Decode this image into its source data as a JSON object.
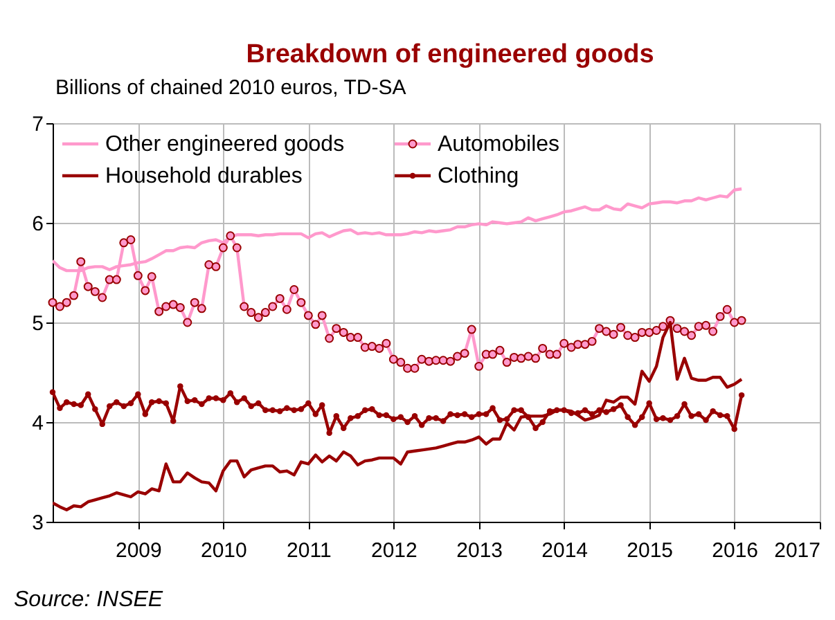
{
  "chart_data": {
    "type": "line",
    "title": "Breakdown of engineered goods",
    "ylabel": "Billions of chained 2010 euros, TD-SA",
    "annotations": [
      "Source: INSEE"
    ],
    "x": [
      "2008-01",
      "2008-02",
      "2008-03",
      "2008-04",
      "2008-05",
      "2008-06",
      "2008-07",
      "2008-08",
      "2008-09",
      "2008-10",
      "2008-11",
      "2008-12",
      "2009-01",
      "2009-02",
      "2009-03",
      "2009-04",
      "2009-05",
      "2009-06",
      "2009-07",
      "2009-08",
      "2009-09",
      "2009-10",
      "2009-11",
      "2009-12",
      "2010-01",
      "2010-02",
      "2010-03",
      "2010-04",
      "2010-05",
      "2010-06",
      "2010-07",
      "2010-08",
      "2010-09",
      "2010-10",
      "2010-11",
      "2010-12",
      "2011-01",
      "2011-02",
      "2011-03",
      "2011-04",
      "2011-05",
      "2011-06",
      "2011-07",
      "2011-08",
      "2011-09",
      "2011-10",
      "2011-11",
      "2011-12",
      "2012-01",
      "2012-02",
      "2012-03",
      "2012-04",
      "2012-05",
      "2012-06",
      "2012-07",
      "2012-08",
      "2012-09",
      "2012-10",
      "2012-11",
      "2012-12",
      "2013-01",
      "2013-02",
      "2013-03",
      "2013-04",
      "2013-05",
      "2013-06",
      "2013-07",
      "2013-08",
      "2013-09",
      "2013-10",
      "2013-11",
      "2013-12",
      "2014-01",
      "2014-02",
      "2014-03",
      "2014-04",
      "2014-05",
      "2014-06",
      "2014-07",
      "2014-08",
      "2014-09",
      "2014-10",
      "2014-11",
      "2014-12",
      "2015-01",
      "2015-02",
      "2015-03",
      "2015-04",
      "2015-05",
      "2015-06",
      "2015-07",
      "2015-08",
      "2015-09",
      "2015-10",
      "2015-11",
      "2015-12",
      "2016-01",
      "2016-02"
    ],
    "xlim": [
      "2008-01",
      "2017-01"
    ],
    "xticks": [
      "2009",
      "2010",
      "2011",
      "2012",
      "2013",
      "2014",
      "2015",
      "2016",
      "2017"
    ],
    "ylim": [
      3,
      7
    ],
    "yticks": [
      3,
      4,
      5,
      6,
      7
    ],
    "grid": true,
    "legend": "top left",
    "series": [
      {
        "name": "Other engineered goods",
        "color": "#ff99cc",
        "marker": "none",
        "values": [
          5.62,
          5.55,
          5.52,
          5.52,
          5.52,
          5.55,
          5.56,
          5.56,
          5.53,
          5.56,
          5.57,
          5.58,
          5.6,
          5.61,
          5.64,
          5.68,
          5.72,
          5.72,
          5.75,
          5.76,
          5.75,
          5.8,
          5.82,
          5.83,
          5.8,
          5.86,
          5.88,
          5.88,
          5.88,
          5.87,
          5.88,
          5.88,
          5.89,
          5.89,
          5.89,
          5.89,
          5.85,
          5.89,
          5.9,
          5.86,
          5.89,
          5.92,
          5.93,
          5.89,
          5.9,
          5.89,
          5.9,
          5.88,
          5.88,
          5.88,
          5.89,
          5.91,
          5.9,
          5.92,
          5.91,
          5.92,
          5.93,
          5.96,
          5.96,
          5.98,
          5.99,
          5.98,
          6.01,
          6.0,
          5.99,
          6.0,
          6.01,
          6.05,
          6.02,
          6.04,
          6.06,
          6.08,
          6.11,
          6.12,
          6.14,
          6.16,
          6.13,
          6.13,
          6.17,
          6.14,
          6.13,
          6.19,
          6.17,
          6.15,
          6.19,
          6.2,
          6.21,
          6.21,
          6.2,
          6.22,
          6.22,
          6.25,
          6.23,
          6.25,
          6.27,
          6.26,
          6.33,
          6.34
        ]
      },
      {
        "name": "Automobiles",
        "color": "#ff99cc",
        "marker": "circle",
        "values": [
          5.2,
          5.16,
          5.2,
          5.27,
          5.61,
          5.36,
          5.31,
          5.25,
          5.43,
          5.43,
          5.8,
          5.83,
          5.47,
          5.32,
          5.46,
          5.11,
          5.16,
          5.18,
          5.15,
          5.0,
          5.2,
          5.14,
          5.58,
          5.56,
          5.75,
          5.87,
          5.75,
          5.16,
          5.1,
          5.05,
          5.1,
          5.16,
          5.24,
          5.13,
          5.33,
          5.2,
          5.07,
          4.98,
          5.07,
          4.84,
          4.94,
          4.9,
          4.85,
          4.85,
          4.75,
          4.76,
          4.74,
          4.79,
          4.63,
          4.6,
          4.54,
          4.54,
          4.63,
          4.61,
          4.62,
          4.62,
          4.61,
          4.66,
          4.69,
          4.93,
          4.56,
          4.68,
          4.68,
          4.72,
          4.6,
          4.65,
          4.64,
          4.66,
          4.64,
          4.74,
          4.68,
          4.68,
          4.79,
          4.75,
          4.78,
          4.78,
          4.81,
          4.94,
          4.91,
          4.88,
          4.95,
          4.87,
          4.85,
          4.9,
          4.9,
          4.92,
          4.96,
          5.02,
          4.94,
          4.91,
          4.87,
          4.96,
          4.97,
          4.91,
          5.06,
          5.13,
          5.0,
          5.02
        ]
      },
      {
        "name": "Household durables",
        "color": "#990000",
        "marker": "none",
        "values": [
          3.19,
          3.15,
          3.12,
          3.16,
          3.15,
          3.2,
          3.22,
          3.24,
          3.26,
          3.29,
          3.27,
          3.25,
          3.3,
          3.28,
          3.33,
          3.31,
          3.58,
          3.4,
          3.4,
          3.49,
          3.44,
          3.4,
          3.39,
          3.31,
          3.51,
          3.61,
          3.61,
          3.45,
          3.52,
          3.54,
          3.56,
          3.56,
          3.5,
          3.51,
          3.47,
          3.6,
          3.58,
          3.67,
          3.6,
          3.66,
          3.61,
          3.7,
          3.66,
          3.57,
          3.61,
          3.62,
          3.64,
          3.64,
          3.64,
          3.58,
          3.7,
          3.71,
          3.72,
          3.73,
          3.74,
          3.76,
          3.78,
          3.8,
          3.8,
          3.82,
          3.85,
          3.78,
          3.83,
          3.83,
          3.99,
          3.92,
          4.05,
          4.06,
          4.06,
          4.06,
          4.08,
          4.12,
          4.12,
          4.11,
          4.07,
          4.02,
          4.04,
          4.07,
          4.22,
          4.2,
          4.25,
          4.25,
          4.18,
          4.51,
          4.41,
          4.56,
          4.85,
          5.0,
          4.43,
          4.64,
          4.44,
          4.42,
          4.42,
          4.45,
          4.45,
          4.35,
          4.38,
          4.43
        ]
      },
      {
        "name": "Clothing",
        "color": "#990000",
        "marker": "circle",
        "values": [
          4.3,
          4.14,
          4.2,
          4.18,
          4.17,
          4.28,
          4.13,
          3.98,
          4.16,
          4.2,
          4.16,
          4.19,
          4.28,
          4.08,
          4.2,
          4.21,
          4.19,
          4.01,
          4.36,
          4.21,
          4.22,
          4.18,
          4.24,
          4.24,
          4.22,
          4.29,
          4.2,
          4.24,
          4.16,
          4.19,
          4.12,
          4.12,
          4.11,
          4.14,
          4.12,
          4.13,
          4.19,
          4.08,
          4.17,
          3.89,
          4.06,
          3.94,
          4.04,
          4.06,
          4.12,
          4.13,
          4.07,
          4.07,
          4.03,
          4.05,
          4.0,
          4.06,
          3.97,
          4.04,
          4.04,
          4.01,
          4.08,
          4.07,
          4.08,
          4.05,
          4.08,
          4.08,
          4.14,
          4.02,
          4.03,
          4.12,
          4.12,
          4.05,
          3.94,
          4.0,
          4.11,
          4.12,
          4.12,
          4.09,
          4.09,
          4.12,
          4.08,
          4.12,
          4.1,
          4.13,
          4.17,
          4.05,
          3.97,
          4.05,
          4.19,
          4.03,
          4.04,
          4.02,
          4.06,
          4.18,
          4.06,
          4.08,
          4.02,
          4.11,
          4.07,
          4.06,
          3.93,
          4.27
        ]
      }
    ]
  }
}
